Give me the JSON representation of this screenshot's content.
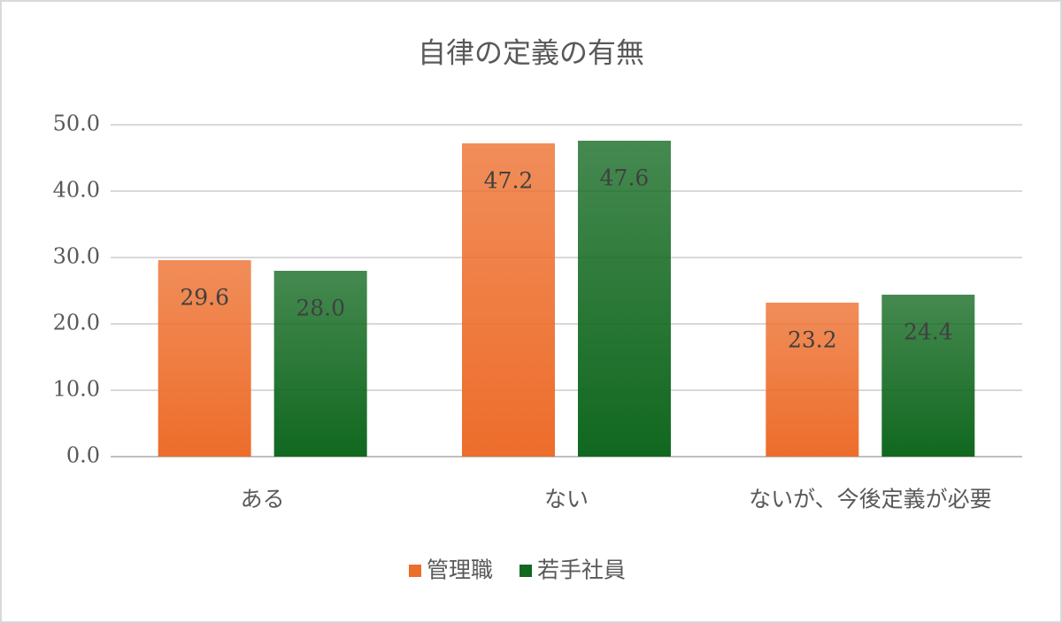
{
  "chart_data": {
    "type": "bar",
    "title": "自律の定義の有無",
    "categories": [
      "ある",
      "ない",
      "ないが、今後定義が必要"
    ],
    "series": [
      {
        "name": "管理職",
        "color": "#ed6d2b",
        "values": [
          29.6,
          47.2,
          23.2
        ],
        "value_labels": [
          "29.6",
          "47.2",
          "23.2"
        ]
      },
      {
        "name": "若手社員",
        "color": "#11681f",
        "values": [
          28,
          47.6,
          24.4
        ],
        "value_labels": [
          "28.0",
          "47.6",
          "24.4"
        ]
      }
    ],
    "ylim": [
      0,
      50
    ],
    "yticks": [
      {
        "value": 0,
        "label": "0.0"
      },
      {
        "value": 10,
        "label": "10.0"
      },
      {
        "value": 20,
        "label": "20.0"
      },
      {
        "value": 30,
        "label": "30.0"
      },
      {
        "value": 40,
        "label": "40.0"
      },
      {
        "value": 50,
        "label": "50.0"
      }
    ],
    "grid": true,
    "legend": "bottom"
  }
}
